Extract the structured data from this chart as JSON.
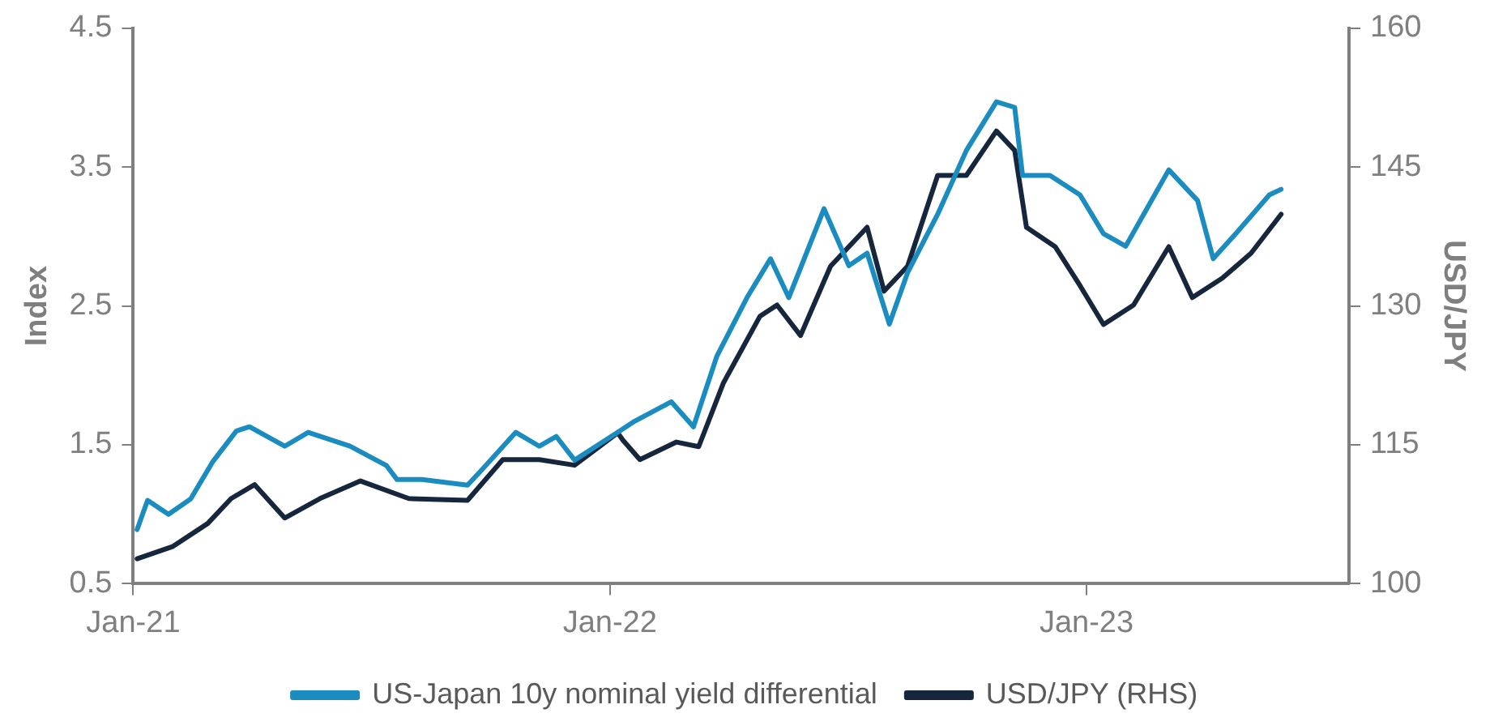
{
  "chart_data": {
    "type": "line",
    "ylabel": "Index",
    "y2label": "USD/JPY",
    "xlim": [
      "2021-01-01",
      "2023-07-21"
    ],
    "xticks": [
      {
        "value": "2021-01-01",
        "label": "Jan-21"
      },
      {
        "value": "2022-01-01",
        "label": "Jan-22"
      },
      {
        "value": "2023-01-01",
        "label": "Jan-23"
      }
    ],
    "ylim": [
      0.5,
      4.5
    ],
    "yticks": [
      0.5,
      1.5,
      2.5,
      3.5,
      4.5
    ],
    "y2lim": [
      100,
      160
    ],
    "y2ticks": [
      100,
      115,
      130,
      145,
      160
    ],
    "grid": false,
    "legend": "bottom",
    "marker": "none",
    "line_style": "solid",
    "series": [
      {
        "name": "US-Japan 10y nominal yield differential",
        "color": "#1a8cc0",
        "x": [
          "2021-01-04",
          "2021-01-12",
          "2021-01-28",
          "2021-02-14",
          "2021-03-03",
          "2021-03-21",
          "2021-03-31",
          "2021-04-27",
          "2021-05-15",
          "2021-06-16",
          "2021-07-14",
          "2021-07-22",
          "2021-08-10",
          "2021-09-14",
          "2021-09-24",
          "2021-10-21",
          "2021-11-08",
          "2021-11-21",
          "2021-12-05",
          "2022-01-07",
          "2022-01-20",
          "2022-02-17",
          "2022-03-06",
          "2022-03-24",
          "2022-04-16",
          "2022-05-04",
          "2022-05-18",
          "2022-06-14",
          "2022-07-03",
          "2022-07-17",
          "2022-08-03",
          "2022-08-17",
          "2022-09-09",
          "2022-10-01",
          "2022-10-24",
          "2022-11-07",
          "2022-11-13",
          "2022-12-04",
          "2022-12-27",
          "2023-01-14",
          "2023-01-31",
          "2023-03-05",
          "2023-03-27",
          "2023-04-08",
          "2023-04-29",
          "2023-05-21",
          "2023-05-30"
        ],
        "values": [
          0.89,
          1.1,
          1.0,
          1.11,
          1.38,
          1.6,
          1.63,
          1.49,
          1.59,
          1.49,
          1.35,
          1.25,
          1.25,
          1.21,
          1.31,
          1.59,
          1.49,
          1.56,
          1.39,
          1.59,
          1.67,
          1.81,
          1.63,
          2.14,
          2.56,
          2.84,
          2.56,
          3.2,
          2.79,
          2.88,
          2.37,
          2.74,
          3.16,
          3.62,
          3.97,
          3.93,
          3.44,
          3.44,
          3.3,
          3.02,
          2.93,
          3.48,
          3.26,
          2.84,
          3.06,
          3.3,
          3.34
        ]
      },
      {
        "name": "USD/JPY (RHS)",
        "color": "#15263d",
        "axis": "y2",
        "x": [
          "2021-01-04",
          "2021-01-31",
          "2021-02-27",
          "2021-03-17",
          "2021-04-04",
          "2021-04-27",
          "2021-05-24",
          "2021-06-24",
          "2021-07-31",
          "2021-09-14",
          "2021-10-11",
          "2021-11-08",
          "2021-12-05",
          "2022-01-07",
          "2022-01-11",
          "2022-01-24",
          "2022-02-21",
          "2022-03-10",
          "2022-03-29",
          "2022-04-26",
          "2022-05-09",
          "2022-05-27",
          "2022-06-19",
          "2022-07-17",
          "2022-07-30",
          "2022-08-17",
          "2022-09-09",
          "2022-10-01",
          "2022-10-24",
          "2022-11-07",
          "2022-11-16",
          "2022-12-08",
          "2022-12-27",
          "2023-01-14",
          "2023-02-06",
          "2023-03-05",
          "2023-03-23",
          "2023-04-15",
          "2023-05-07",
          "2023-05-30"
        ],
        "values": [
          102.7,
          104.0,
          106.5,
          109.2,
          110.7,
          107.1,
          109.2,
          111.1,
          109.2,
          109.0,
          113.4,
          113.4,
          112.8,
          116.3,
          115.5,
          113.4,
          115.3,
          114.8,
          121.7,
          128.9,
          130.1,
          126.8,
          134.3,
          138.5,
          131.6,
          134.3,
          144.1,
          144.1,
          148.9,
          146.8,
          138.5,
          136.4,
          132.2,
          128.0,
          130.1,
          136.4,
          130.9,
          133.0,
          135.7,
          139.9
        ]
      }
    ]
  }
}
